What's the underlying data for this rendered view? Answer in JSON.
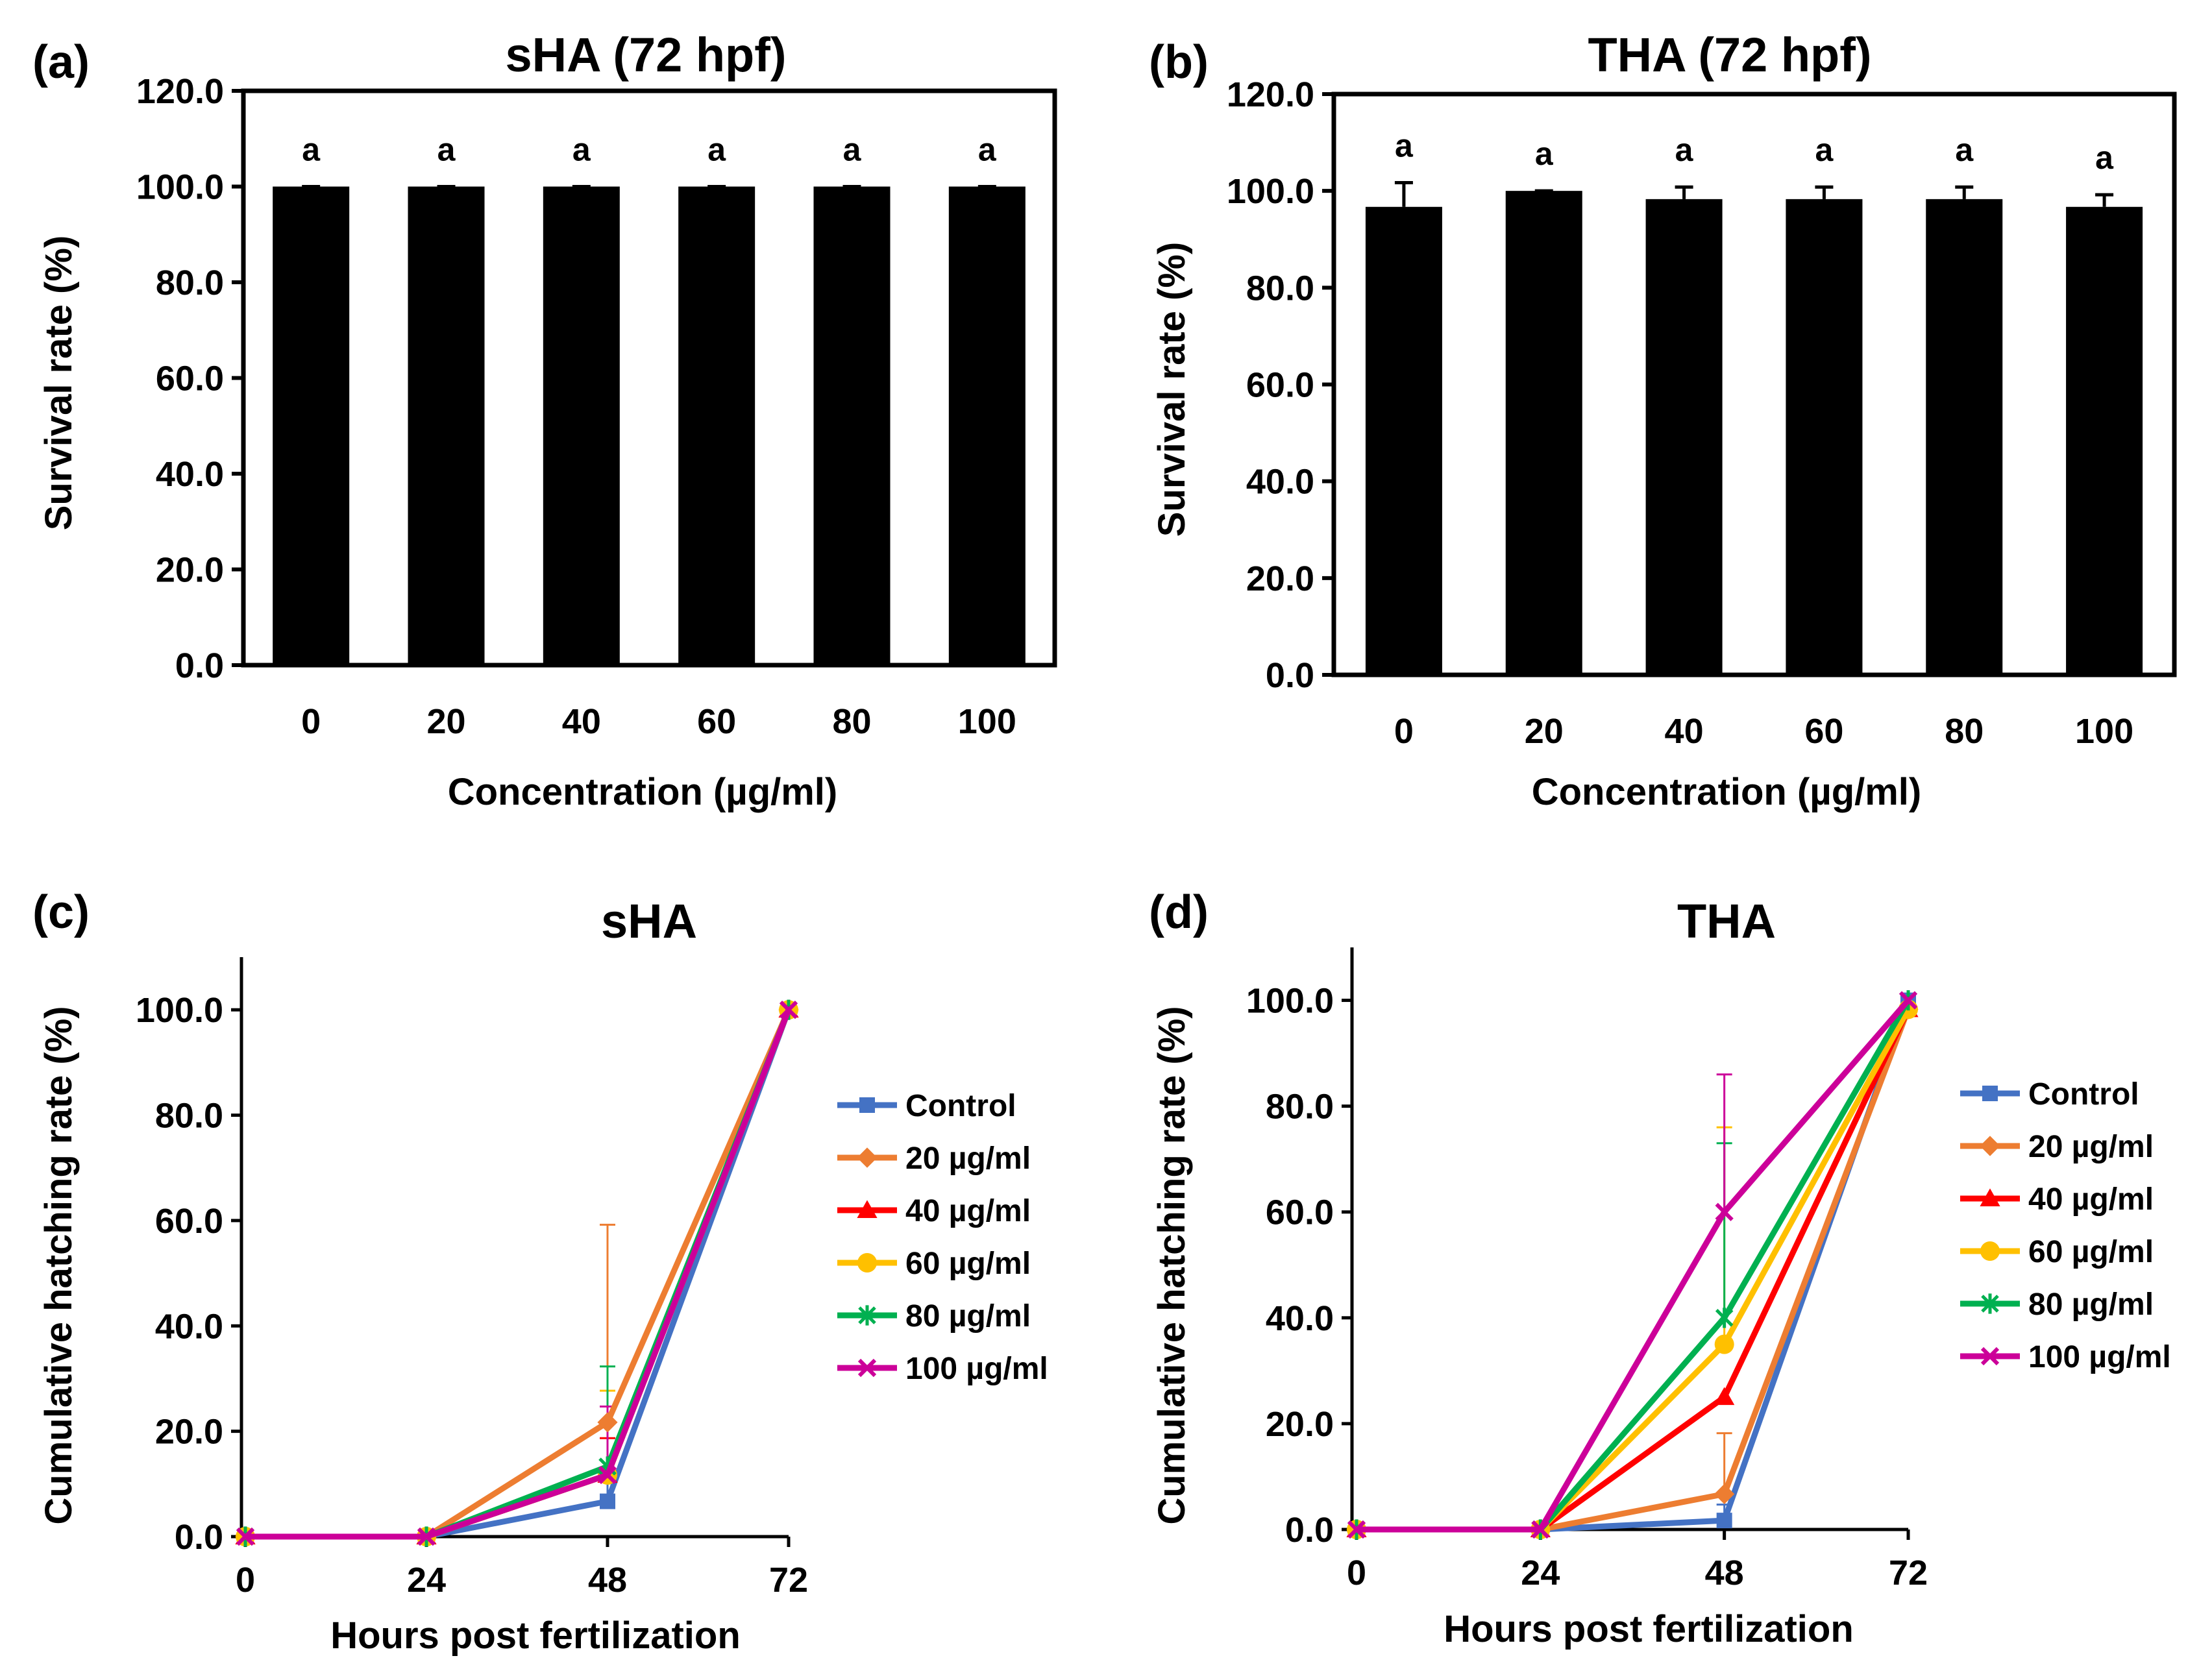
{
  "chart_data": [
    {
      "panel_label": "(a)",
      "type": "bar",
      "title": "sHA (72 hpf)",
      "xlabel": "Concentration (µg/ml)",
      "ylabel": "Survival rate (%)",
      "categories": [
        "0",
        "20",
        "40",
        "60",
        "80",
        "100"
      ],
      "values": [
        100.0,
        100.0,
        100.0,
        100.0,
        100.0,
        100.0
      ],
      "errors": [
        0.0,
        0.0,
        0.0,
        0.0,
        0.0,
        0.0
      ],
      "annotations": [
        "a",
        "a",
        "a",
        "a",
        "a",
        "a"
      ],
      "ylim": [
        0,
        120
      ],
      "yticks": [
        "0.0",
        "20.0",
        "40.0",
        "60.0",
        "80.0",
        "100.0",
        "120.0"
      ],
      "bar_color": "#000000",
      "grid": false
    },
    {
      "panel_label": "(b)",
      "type": "bar",
      "title": "THA (72 hpf)",
      "xlabel": "Concentration (µg/ml)",
      "ylabel": "Survival rate (%)",
      "categories": [
        "0",
        "20",
        "40",
        "60",
        "80",
        "100"
      ],
      "values": [
        96.7,
        100.0,
        98.3,
        98.3,
        98.3,
        96.7
      ],
      "errors": [
        5.0,
        0.0,
        2.5,
        2.5,
        2.5,
        2.5
      ],
      "annotations": [
        "a",
        "a",
        "a",
        "a",
        "a",
        "a"
      ],
      "ylim": [
        0,
        120
      ],
      "yticks": [
        "0.0",
        "20.0",
        "40.0",
        "60.0",
        "80.0",
        "100.0",
        "120.0"
      ],
      "bar_color": "#000000",
      "grid": false
    },
    {
      "panel_label": "(c)",
      "type": "line",
      "title": "sHA",
      "xlabel": "Hours post fertilization",
      "ylabel": "Cumulative hatching rate (%)",
      "x": [
        0,
        24,
        48,
        72
      ],
      "xticks": [
        "0",
        "24",
        "48",
        "72"
      ],
      "ylim": [
        0,
        110
      ],
      "yticks": [
        "0.0",
        "20.0",
        "40.0",
        "60.0",
        "80.0",
        "100.0"
      ],
      "legend_position": "right",
      "series": [
        {
          "name": "Control",
          "color": "#4472C4",
          "marker": "square",
          "values": [
            0,
            0,
            6.7,
            100
          ],
          "err48": 6.0
        },
        {
          "name": "20 µg/ml",
          "color": "#ED7D31",
          "marker": "diamond",
          "values": [
            0,
            0,
            21.7,
            100
          ],
          "err48": 37.5
        },
        {
          "name": "40 µg/ml",
          "color": "#FF0000",
          "marker": "triangle",
          "values": [
            0,
            0,
            11.7,
            100
          ],
          "err48": 7.0
        },
        {
          "name": "60 µg/ml",
          "color": "#FFC000",
          "marker": "circle",
          "values": [
            0,
            0,
            11.7,
            100
          ],
          "err48": 16.0
        },
        {
          "name": "80 µg/ml",
          "color": "#00B050",
          "marker": "star",
          "values": [
            0,
            0,
            13.3,
            100
          ],
          "err48": 19.0
        },
        {
          "name": "100 µg/ml",
          "color": "#CC0099",
          "marker": "x",
          "values": [
            0,
            0,
            11.7,
            100
          ],
          "err48": 13.0
        }
      ]
    },
    {
      "panel_label": "(d)",
      "type": "line",
      "title": "THA",
      "xlabel": "Hours post fertilization",
      "ylabel": "Cumulative hatching rate (%)",
      "x": [
        0,
        24,
        48,
        72
      ],
      "xticks": [
        "0",
        "24",
        "48",
        "72"
      ],
      "ylim": [
        0,
        110
      ],
      "yticks": [
        "0.0",
        "20.0",
        "40.0",
        "60.0",
        "80.0",
        "100.0"
      ],
      "legend_position": "right",
      "series": [
        {
          "name": "Control",
          "color": "#4472C4",
          "marker": "square",
          "values": [
            0,
            0,
            1.7,
            100
          ],
          "err48": 3.0
        },
        {
          "name": "20 µg/ml",
          "color": "#ED7D31",
          "marker": "diamond",
          "values": [
            0,
            0,
            6.7,
            98.3
          ],
          "err48": 11.5
        },
        {
          "name": "40 µg/ml",
          "color": "#FF0000",
          "marker": "triangle",
          "values": [
            0,
            0,
            25.0,
            98.3
          ],
          "err48": 0.0
        },
        {
          "name": "60 µg/ml",
          "color": "#FFC000",
          "marker": "circle",
          "values": [
            0,
            0,
            35.0,
            98.3
          ],
          "err48": 41.0
        },
        {
          "name": "80 µg/ml",
          "color": "#00B050",
          "marker": "star",
          "values": [
            0,
            0,
            40.0,
            100
          ],
          "err48": 33.0
        },
        {
          "name": "100 µg/ml",
          "color": "#CC0099",
          "marker": "x",
          "values": [
            0,
            0,
            60.0,
            100
          ],
          "err48": 26.0
        }
      ]
    }
  ]
}
